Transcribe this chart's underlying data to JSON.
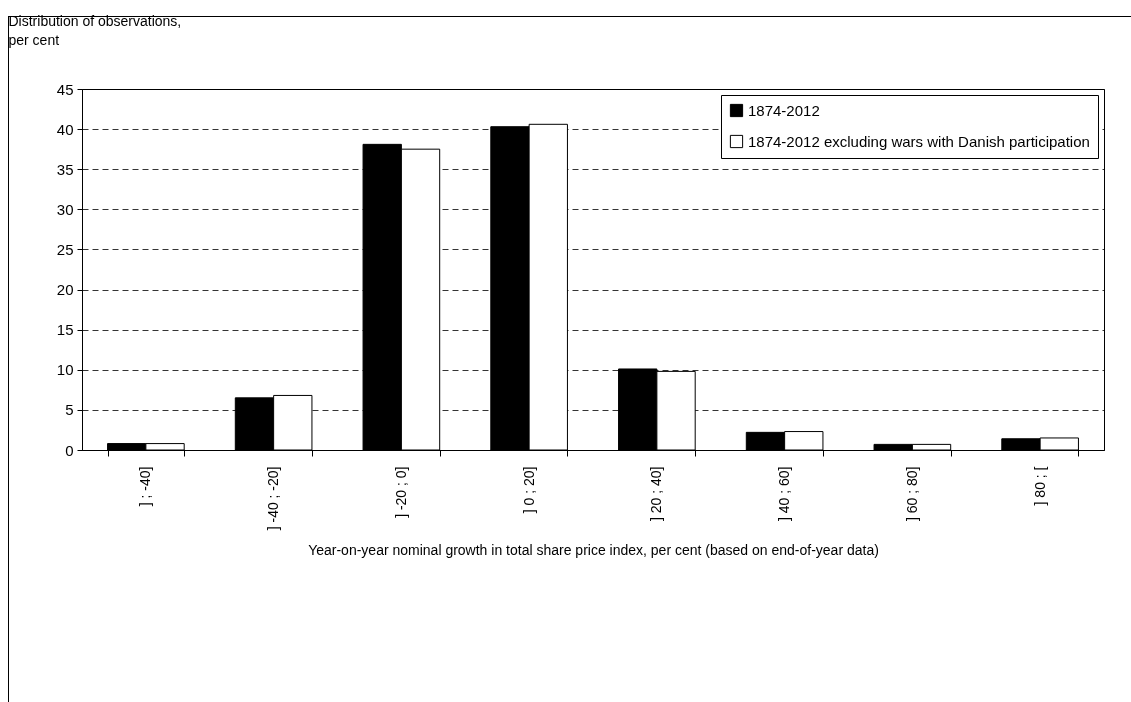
{
  "chart_data": {
    "type": "bar",
    "ylabel": "Distribution of observations,\nper cent",
    "xlabel": "Year-on-year nominal growth in total share price index, per cent (based on end-of-year data)",
    "categories": [
      "] ; -40]",
      "] -40 ; -20]",
      "] -20 ; 0]",
      "] 0 ; 20]",
      "] 20 ; 40]",
      "] 40 ; 60]",
      "] 60 ; 80]",
      "] 80 ; ["
    ],
    "series": [
      {
        "name": "1874-2012",
        "color": "#000000",
        "values": [
          0.8,
          6.5,
          38.1,
          40.3,
          10.1,
          2.2,
          0.7,
          1.4
        ]
      },
      {
        "name": "1874-2012 excluding wars with Danish participation",
        "color": "#ffffff",
        "values": [
          0.8,
          6.8,
          37.5,
          40.6,
          9.8,
          2.3,
          0.7,
          1.5
        ]
      }
    ],
    "ylim": [
      0,
      45
    ],
    "yticks": [
      0,
      5,
      10,
      15,
      20,
      25,
      30,
      35,
      40,
      45
    ],
    "grid": "y",
    "legend": "top right"
  }
}
